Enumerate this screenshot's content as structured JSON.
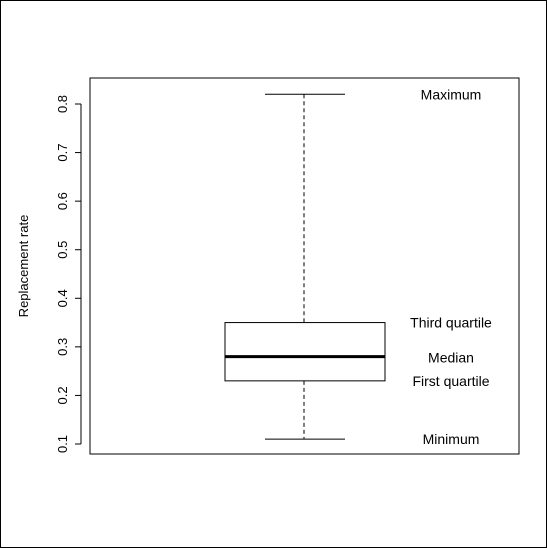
{
  "chart_data": {
    "type": "box",
    "ylabel": "Replacement rate",
    "xlabel": "",
    "title": "",
    "ylim": [
      0.09,
      0.83
    ],
    "yticks": [
      0.1,
      0.2,
      0.3,
      0.4,
      0.5,
      0.6,
      0.7,
      0.8
    ],
    "ytick_labels": [
      "0.1",
      "0.2",
      "0.3",
      "0.4",
      "0.5",
      "0.6",
      "0.7",
      "0.8"
    ],
    "box": {
      "min": 0.11,
      "q1": 0.23,
      "median": 0.28,
      "q3": 0.35,
      "max": 0.82
    },
    "annotations": {
      "max": "Maximum",
      "q3": "Third quartile",
      "median": "Median",
      "q1": "First quartile",
      "min": "Minimum"
    },
    "colors": {
      "box_fill": "#ffffff",
      "line": "#000000"
    }
  }
}
